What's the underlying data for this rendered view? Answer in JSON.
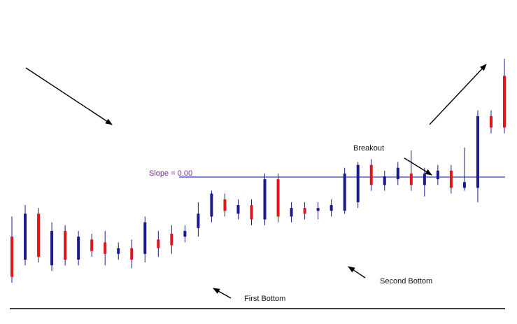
{
  "chart_data": {
    "type": "candlestick",
    "colors": {
      "up": "#1a1a8c",
      "down": "#e0161b",
      "wick": "#1a1a8c",
      "hline": "#3b3bc8",
      "arrow": "#000000",
      "baseline": "#000000"
    },
    "slope_label": "Slope = 0.00",
    "annotations": [
      {
        "id": "first-bottom",
        "text": "First Bottom"
      },
      {
        "id": "second-bottom",
        "text": "Second Bottom"
      },
      {
        "id": "breakout",
        "text": "Breakout"
      }
    ],
    "candles": [
      {
        "o": 20.0,
        "c": 6.0,
        "h": 27.0,
        "l": 4.0
      },
      {
        "o": 12.0,
        "c": 28.0,
        "h": 31.0,
        "l": 10.0
      },
      {
        "o": 28.0,
        "c": 13.0,
        "h": 30.0,
        "l": 11.0
      },
      {
        "o": 10.0,
        "c": 22.0,
        "h": 25.0,
        "l": 8.0
      },
      {
        "o": 22.0,
        "c": 12.0,
        "h": 24.0,
        "l": 10.0
      },
      {
        "o": 12.0,
        "c": 20.0,
        "h": 22.0,
        "l": 10.0
      },
      {
        "o": 19.0,
        "c": 15.0,
        "h": 21.0,
        "l": 13.0
      },
      {
        "o": 18.0,
        "c": 14.0,
        "h": 22.0,
        "l": 10.0
      },
      {
        "o": 14.0,
        "c": 16.0,
        "h": 18.0,
        "l": 12.0
      },
      {
        "o": 16.0,
        "c": 12.0,
        "h": 19.0,
        "l": 9.0
      },
      {
        "o": 14.0,
        "c": 25.0,
        "h": 27.0,
        "l": 11.0
      },
      {
        "o": 19.0,
        "c": 16.0,
        "h": 22.0,
        "l": 13.0
      },
      {
        "o": 21.0,
        "c": 17.0,
        "h": 24.0,
        "l": 14.0
      },
      {
        "o": 20.0,
        "c": 22.0,
        "h": 24.0,
        "l": 18.0
      },
      {
        "o": 23.0,
        "c": 28.0,
        "h": 32.0,
        "l": 20.0
      },
      {
        "o": 27.0,
        "c": 35.0,
        "h": 36.0,
        "l": 25.0
      },
      {
        "o": 33.0,
        "c": 29.0,
        "h": 35.0,
        "l": 27.0
      },
      {
        "o": 28.0,
        "c": 31.0,
        "h": 33.0,
        "l": 26.0
      },
      {
        "o": 31.0,
        "c": 26.0,
        "h": 33.0,
        "l": 24.0
      },
      {
        "o": 26.0,
        "c": 40.0,
        "h": 42.0,
        "l": 24.0
      },
      {
        "o": 40.0,
        "c": 27.0,
        "h": 42.0,
        "l": 25.0
      },
      {
        "o": 27.0,
        "c": 30.0,
        "h": 32.0,
        "l": 25.0
      },
      {
        "o": 30.0,
        "c": 28.0,
        "h": 32.0,
        "l": 26.0
      },
      {
        "o": 29.0,
        "c": 30.0,
        "h": 32.0,
        "l": 26.0
      },
      {
        "o": 29.0,
        "c": 31.0,
        "h": 33.0,
        "l": 27.0
      },
      {
        "o": 29.0,
        "c": 42.0,
        "h": 44.0,
        "l": 28.0
      },
      {
        "o": 32.0,
        "c": 45.0,
        "h": 46.0,
        "l": 30.0
      },
      {
        "o": 45.0,
        "c": 38.0,
        "h": 47.0,
        "l": 36.0
      },
      {
        "o": 38.0,
        "c": 41.0,
        "h": 43.0,
        "l": 36.0
      },
      {
        "o": 40.0,
        "c": 44.0,
        "h": 46.0,
        "l": 38.0
      },
      {
        "o": 42.0,
        "c": 38.0,
        "h": 50.0,
        "l": 36.0
      },
      {
        "o": 38.0,
        "c": 42.0,
        "h": 44.0,
        "l": 34.0
      },
      {
        "o": 40.0,
        "c": 43.0,
        "h": 45.0,
        "l": 38.0
      },
      {
        "o": 43.0,
        "c": 37.0,
        "h": 45.0,
        "l": 35.0
      },
      {
        "o": 37.0,
        "c": 39.0,
        "h": 51.0,
        "l": 36.0
      },
      {
        "o": 37.0,
        "c": 62.0,
        "h": 64.0,
        "l": 32.0
      },
      {
        "o": 62.0,
        "c": 58.0,
        "h": 64.0,
        "l": 56.0
      },
      {
        "o": 76.0,
        "c": 58.0,
        "h": 82.0,
        "l": 56.0
      }
    ]
  }
}
